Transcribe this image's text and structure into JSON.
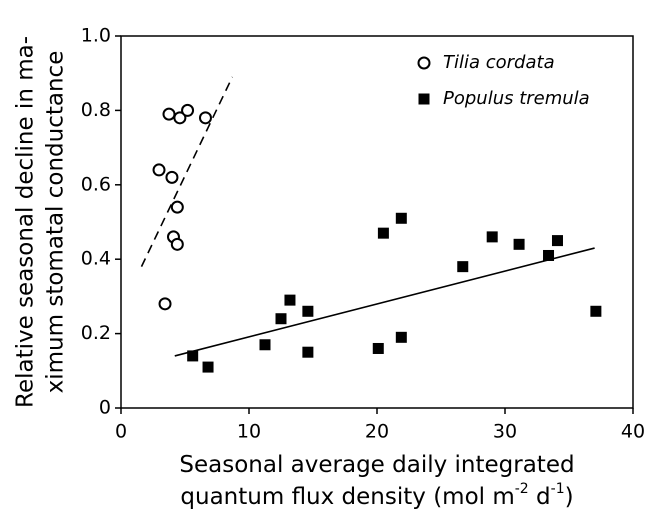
{
  "chart_data": {
    "type": "scatter",
    "ylabel": [
      "Relative seasonal decline in ma-",
      "ximum stomatal conductance"
    ],
    "xlabel": [
      [
        "Seasonal average daily integrated"
      ],
      [
        "quantum flux density (mol m",
        "-2",
        " d",
        "-1",
        ")"
      ]
    ],
    "xlim": [
      0,
      40
    ],
    "xticks": [
      0,
      10,
      20,
      30,
      40
    ],
    "ylim": [
      0,
      1
    ],
    "yticks": [
      0,
      0.2,
      0.4,
      0.6,
      0.8,
      {
        "value": 1,
        "label": "1.0"
      }
    ],
    "series": [
      {
        "name": "Tilia cordata",
        "marker": "open-circle",
        "color": "#000",
        "x": [
          2.97,
          3.75,
          3.98,
          4.6,
          5.2,
          6.6,
          4.4,
          4.1,
          4.4,
          3.44
        ],
        "values": [
          0.64,
          0.79,
          0.62,
          0.78,
          0.8,
          0.78,
          0.54,
          0.46,
          0.44,
          0.28
        ],
        "fit": {
          "x": [
            1.6,
            8.7
          ],
          "y": [
            0.38,
            0.89
          ],
          "dash": true
        }
      },
      {
        "name": "Populus tremula",
        "marker": "filled-square",
        "color": "#000",
        "x": [
          5.6,
          6.8,
          11.25,
          12.5,
          13.2,
          14.6,
          14.6,
          20.1,
          20.5,
          21.9,
          21.9,
          26.7,
          29.0,
          31.1,
          33.4,
          34.1,
          37.1
        ],
        "values": [
          0.14,
          0.11,
          0.17,
          0.24,
          0.29,
          0.26,
          0.15,
          0.16,
          0.47,
          0.51,
          0.19,
          0.38,
          0.46,
          0.44,
          0.41,
          0.45,
          0.26
        ],
        "fit": {
          "x": [
            4.2,
            37.0
          ],
          "y": [
            0.14,
            0.43
          ],
          "dash": false
        }
      }
    ]
  }
}
